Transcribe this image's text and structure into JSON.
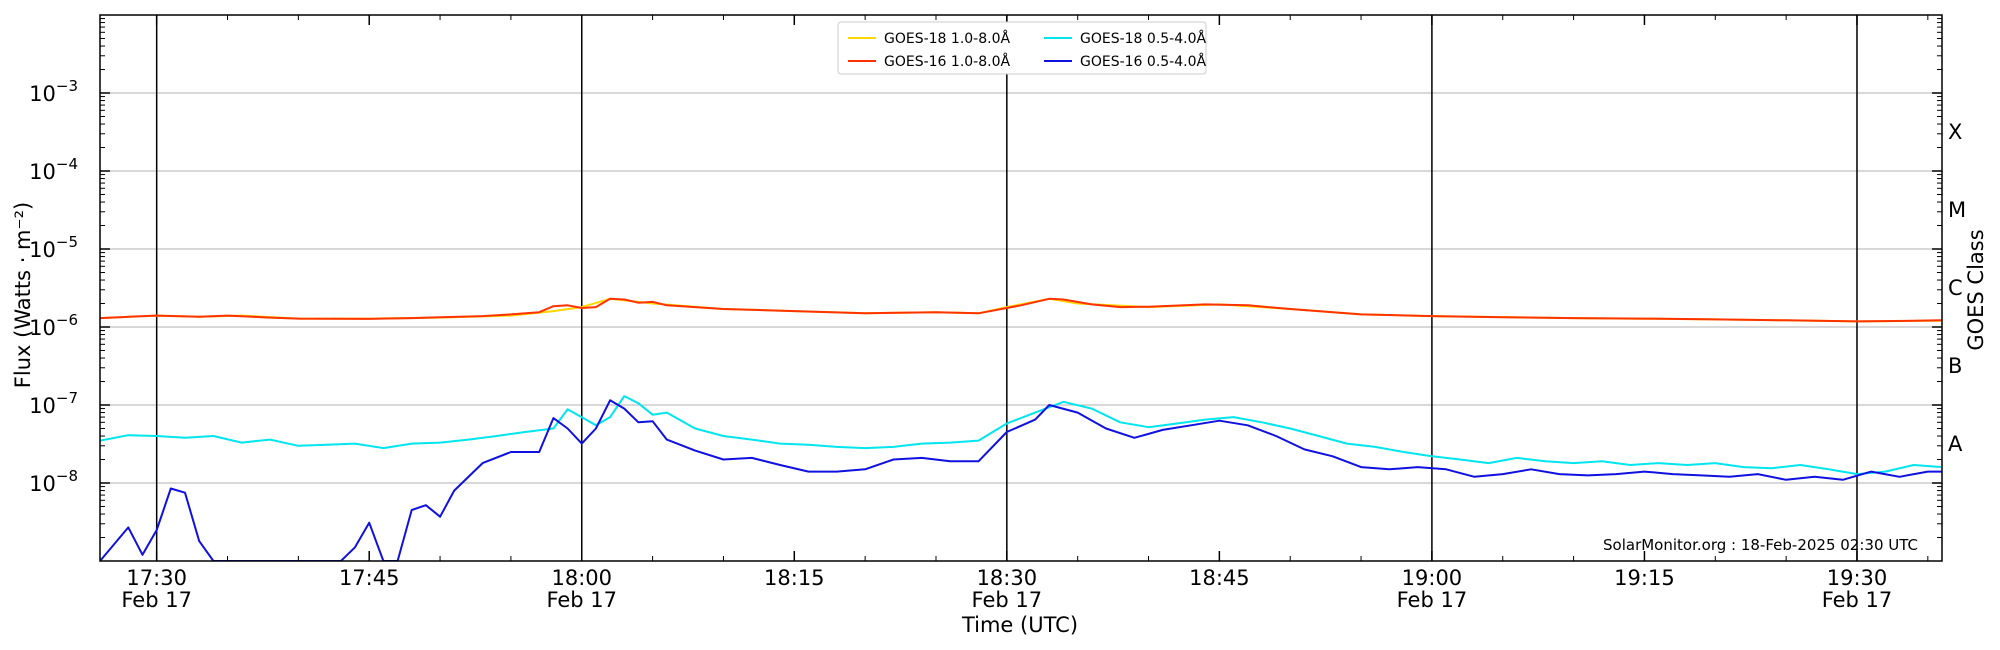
{
  "chart_data": {
    "type": "line",
    "title": "",
    "xlabel": "Time (UTC)",
    "ylabel": "Flux (Watts · m⁻²)",
    "y_scale": "log",
    "ylim": [
      1e-09,
      0.01
    ],
    "xlim": [
      "17:26",
      "19:36"
    ],
    "grid": "horizontal at decades",
    "legend_placement": "top-center",
    "credit": "SolarMonitor.org : 18-Feb-2025 02:30 UTC",
    "right_axis": {
      "label": "GOES Class",
      "classes": [
        {
          "name": "X",
          "flux": 0.0001
        },
        {
          "name": "M",
          "flux": 1e-05
        },
        {
          "name": "C",
          "flux": 1e-06
        },
        {
          "name": "B",
          "flux": 1e-07
        },
        {
          "name": "A",
          "flux": 1e-08
        }
      ]
    },
    "y_ticks": [
      {
        "value": 0.001,
        "base": "10",
        "exp": "−3"
      },
      {
        "value": 0.0001,
        "base": "10",
        "exp": "−4"
      },
      {
        "value": 1e-05,
        "base": "10",
        "exp": "−5"
      },
      {
        "value": 1e-06,
        "base": "10",
        "exp": "−6"
      },
      {
        "value": 1e-07,
        "base": "10",
        "exp": "−7"
      },
      {
        "value": 1e-08,
        "base": "10",
        "exp": "−8"
      }
    ],
    "x_ticks": [
      {
        "time": "17:30",
        "line1": "17:30",
        "line2": "Feb 17",
        "vline": true
      },
      {
        "time": "17:45",
        "line1": "17:45",
        "line2": "",
        "vline": false
      },
      {
        "time": "18:00",
        "line1": "18:00",
        "line2": "Feb 17",
        "vline": true
      },
      {
        "time": "18:15",
        "line1": "18:15",
        "line2": "",
        "vline": false
      },
      {
        "time": "18:30",
        "line1": "18:30",
        "line2": "Feb 17",
        "vline": true
      },
      {
        "time": "18:45",
        "line1": "18:45",
        "line2": "",
        "vline": false
      },
      {
        "time": "19:00",
        "line1": "19:00",
        "line2": "Feb 17",
        "vline": true
      },
      {
        "time": "19:15",
        "line1": "19:15",
        "line2": "",
        "vline": false
      },
      {
        "time": "19:30",
        "line1": "19:30",
        "line2": "Feb 17",
        "vline": true
      }
    ],
    "series": [
      {
        "name": "GOES-18 1.0-8.0Å",
        "color": "#ffd700",
        "points": [
          [
            "17:26",
            1.3e-06
          ],
          [
            "17:30",
            1.4e-06
          ],
          [
            "17:33",
            1.35e-06
          ],
          [
            "17:36",
            1.4e-06
          ],
          [
            "17:40",
            1.28e-06
          ],
          [
            "17:45",
            1.28e-06
          ],
          [
            "17:50",
            1.32e-06
          ],
          [
            "17:55",
            1.4e-06
          ],
          [
            "17:58",
            1.6e-06
          ],
          [
            "18:00",
            1.8e-06
          ],
          [
            "18:02",
            2.3e-06
          ],
          [
            "18:05",
            2e-06
          ],
          [
            "18:10",
            1.7e-06
          ],
          [
            "18:15",
            1.6e-06
          ],
          [
            "18:20",
            1.5e-06
          ],
          [
            "18:25",
            1.55e-06
          ],
          [
            "18:28",
            1.5e-06
          ],
          [
            "18:30",
            1.8e-06
          ],
          [
            "18:33",
            2.3e-06
          ],
          [
            "18:35",
            2e-06
          ],
          [
            "18:40",
            1.8e-06
          ],
          [
            "18:45",
            1.95e-06
          ],
          [
            "18:50",
            1.7e-06
          ],
          [
            "18:55",
            1.45e-06
          ],
          [
            "19:00",
            1.38e-06
          ],
          [
            "19:10",
            1.3e-06
          ],
          [
            "19:20",
            1.25e-06
          ],
          [
            "19:30",
            1.18e-06
          ],
          [
            "19:36",
            1.2e-06
          ]
        ]
      },
      {
        "name": "GOES-16 1.0-8.0Å",
        "color": "#ff3300",
        "points": [
          [
            "17:26",
            1.3e-06
          ],
          [
            "17:28",
            1.35e-06
          ],
          [
            "17:30",
            1.4e-06
          ],
          [
            "17:33",
            1.35e-06
          ],
          [
            "17:35",
            1.4e-06
          ],
          [
            "17:38",
            1.32e-06
          ],
          [
            "17:40",
            1.28e-06
          ],
          [
            "17:45",
            1.27e-06
          ],
          [
            "17:48",
            1.3e-06
          ],
          [
            "17:50",
            1.33e-06
          ],
          [
            "17:53",
            1.38e-06
          ],
          [
            "17:55",
            1.45e-06
          ],
          [
            "17:57",
            1.55e-06
          ],
          [
            "17:58",
            1.85e-06
          ],
          [
            "17:59",
            1.9e-06
          ],
          [
            "18:00",
            1.75e-06
          ],
          [
            "18:01",
            1.8e-06
          ],
          [
            "18:02",
            2.3e-06
          ],
          [
            "18:03",
            2.25e-06
          ],
          [
            "18:04",
            2.05e-06
          ],
          [
            "18:05",
            2.1e-06
          ],
          [
            "18:06",
            1.9e-06
          ],
          [
            "18:10",
            1.7e-06
          ],
          [
            "18:15",
            1.6e-06
          ],
          [
            "18:20",
            1.5e-06
          ],
          [
            "18:25",
            1.55e-06
          ],
          [
            "18:28",
            1.5e-06
          ],
          [
            "18:30",
            1.75e-06
          ],
          [
            "18:31",
            1.9e-06
          ],
          [
            "18:33",
            2.3e-06
          ],
          [
            "18:34",
            2.25e-06
          ],
          [
            "18:36",
            1.95e-06
          ],
          [
            "18:38",
            1.8e-06
          ],
          [
            "18:40",
            1.82e-06
          ],
          [
            "18:44",
            1.95e-06
          ],
          [
            "18:47",
            1.9e-06
          ],
          [
            "18:50",
            1.7e-06
          ],
          [
            "18:55",
            1.45e-06
          ],
          [
            "19:00",
            1.38e-06
          ],
          [
            "19:05",
            1.33e-06
          ],
          [
            "19:10",
            1.3e-06
          ],
          [
            "19:15",
            1.28e-06
          ],
          [
            "19:20",
            1.25e-06
          ],
          [
            "19:25",
            1.22e-06
          ],
          [
            "19:30",
            1.18e-06
          ],
          [
            "19:34",
            1.2e-06
          ],
          [
            "19:36",
            1.22e-06
          ]
        ]
      },
      {
        "name": "GOES-18 0.5-4.0Å",
        "color": "#00e5ee",
        "points": [
          [
            "17:26",
            3.5e-08
          ],
          [
            "17:28",
            4.1e-08
          ],
          [
            "17:30",
            4e-08
          ],
          [
            "17:32",
            3.8e-08
          ],
          [
            "17:34",
            4e-08
          ],
          [
            "17:36",
            3.3e-08
          ],
          [
            "17:38",
            3.6e-08
          ],
          [
            "17:40",
            3e-08
          ],
          [
            "17:42",
            3.1e-08
          ],
          [
            "17:44",
            3.2e-08
          ],
          [
            "17:46",
            2.8e-08
          ],
          [
            "17:48",
            3.2e-08
          ],
          [
            "17:50",
            3.3e-08
          ],
          [
            "17:52",
            3.6e-08
          ],
          [
            "17:54",
            4e-08
          ],
          [
            "17:56",
            4.5e-08
          ],
          [
            "17:58",
            5e-08
          ],
          [
            "17:59",
            8.8e-08
          ],
          [
            "18:01",
            5.5e-08
          ],
          [
            "18:02",
            7e-08
          ],
          [
            "18:03",
            1.3e-07
          ],
          [
            "18:04",
            1.05e-07
          ],
          [
            "18:05",
            7.5e-08
          ],
          [
            "18:06",
            8e-08
          ],
          [
            "18:08",
            5e-08
          ],
          [
            "18:10",
            4e-08
          ],
          [
            "18:12",
            3.6e-08
          ],
          [
            "18:14",
            3.2e-08
          ],
          [
            "18:16",
            3.1e-08
          ],
          [
            "18:18",
            2.9e-08
          ],
          [
            "18:20",
            2.8e-08
          ],
          [
            "18:22",
            2.9e-08
          ],
          [
            "18:24",
            3.2e-08
          ],
          [
            "18:26",
            3.3e-08
          ],
          [
            "18:28",
            3.5e-08
          ],
          [
            "18:30",
            5.8e-08
          ],
          [
            "18:32",
            8e-08
          ],
          [
            "18:34",
            1.1e-07
          ],
          [
            "18:36",
            9e-08
          ],
          [
            "18:38",
            6e-08
          ],
          [
            "18:40",
            5.2e-08
          ],
          [
            "18:42",
            5.8e-08
          ],
          [
            "18:44",
            6.5e-08
          ],
          [
            "18:46",
            7e-08
          ],
          [
            "18:48",
            6e-08
          ],
          [
            "18:50",
            5e-08
          ],
          [
            "18:52",
            4e-08
          ],
          [
            "18:54",
            3.2e-08
          ],
          [
            "18:56",
            2.9e-08
          ],
          [
            "18:58",
            2.5e-08
          ],
          [
            "19:00",
            2.2e-08
          ],
          [
            "19:02",
            2e-08
          ],
          [
            "19:04",
            1.8e-08
          ],
          [
            "19:06",
            2.1e-08
          ],
          [
            "19:08",
            1.9e-08
          ],
          [
            "19:10",
            1.8e-08
          ],
          [
            "19:12",
            1.9e-08
          ],
          [
            "19:14",
            1.7e-08
          ],
          [
            "19:16",
            1.8e-08
          ],
          [
            "19:18",
            1.7e-08
          ],
          [
            "19:20",
            1.8e-08
          ],
          [
            "19:22",
            1.6e-08
          ],
          [
            "19:24",
            1.55e-08
          ],
          [
            "19:26",
            1.7e-08
          ],
          [
            "19:28",
            1.5e-08
          ],
          [
            "19:30",
            1.3e-08
          ],
          [
            "19:32",
            1.4e-08
          ],
          [
            "19:34",
            1.7e-08
          ],
          [
            "19:36",
            1.6e-08
          ]
        ]
      },
      {
        "name": "GOES-16 0.5-4.0Å",
        "color": "#1010e0",
        "points": [
          [
            "17:26",
            1e-09
          ],
          [
            "17:28",
            2.7e-09
          ],
          [
            "17:29",
            1.2e-09
          ],
          [
            "17:30",
            2.5e-09
          ],
          [
            "17:31",
            8.5e-09
          ],
          [
            "17:32",
            7.5e-09
          ],
          [
            "17:33",
            1.8e-09
          ],
          [
            "17:34",
            1e-09
          ],
          [
            "17:40",
            1e-09
          ],
          [
            "17:43",
            1e-09
          ],
          [
            "17:44",
            1.5e-09
          ],
          [
            "17:45",
            3.1e-09
          ],
          [
            "17:46",
            1e-09
          ],
          [
            "17:47",
            1e-09
          ],
          [
            "17:48",
            4.5e-09
          ],
          [
            "17:49",
            5.2e-09
          ],
          [
            "17:50",
            3.7e-09
          ],
          [
            "17:51",
            8e-09
          ],
          [
            "17:53",
            1.8e-08
          ],
          [
            "17:55",
            2.5e-08
          ],
          [
            "17:57",
            2.5e-08
          ],
          [
            "17:58",
            6.8e-08
          ],
          [
            "17:59",
            5e-08
          ],
          [
            "18:00",
            3.2e-08
          ],
          [
            "18:01",
            5e-08
          ],
          [
            "18:02",
            1.15e-07
          ],
          [
            "18:03",
            9e-08
          ],
          [
            "18:04",
            6e-08
          ],
          [
            "18:05",
            6.2e-08
          ],
          [
            "18:06",
            3.6e-08
          ],
          [
            "18:08",
            2.6e-08
          ],
          [
            "18:10",
            2e-08
          ],
          [
            "18:12",
            2.1e-08
          ],
          [
            "18:14",
            1.7e-08
          ],
          [
            "18:16",
            1.4e-08
          ],
          [
            "18:18",
            1.4e-08
          ],
          [
            "18:20",
            1.5e-08
          ],
          [
            "18:22",
            2e-08
          ],
          [
            "18:24",
            2.1e-08
          ],
          [
            "18:26",
            1.9e-08
          ],
          [
            "18:28",
            1.9e-08
          ],
          [
            "18:30",
            4.5e-08
          ],
          [
            "18:32",
            6.5e-08
          ],
          [
            "18:33",
            1e-07
          ],
          [
            "18:35",
            8e-08
          ],
          [
            "18:37",
            5e-08
          ],
          [
            "18:39",
            3.8e-08
          ],
          [
            "18:41",
            4.8e-08
          ],
          [
            "18:43",
            5.5e-08
          ],
          [
            "18:45",
            6.3e-08
          ],
          [
            "18:47",
            5.5e-08
          ],
          [
            "18:49",
            4e-08
          ],
          [
            "18:51",
            2.7e-08
          ],
          [
            "18:53",
            2.2e-08
          ],
          [
            "18:55",
            1.6e-08
          ],
          [
            "18:57",
            1.5e-08
          ],
          [
            "18:59",
            1.6e-08
          ],
          [
            "19:01",
            1.5e-08
          ],
          [
            "19:03",
            1.2e-08
          ],
          [
            "19:05",
            1.3e-08
          ],
          [
            "19:07",
            1.5e-08
          ],
          [
            "19:09",
            1.3e-08
          ],
          [
            "19:11",
            1.25e-08
          ],
          [
            "19:13",
            1.3e-08
          ],
          [
            "19:15",
            1.4e-08
          ],
          [
            "19:17",
            1.3e-08
          ],
          [
            "19:19",
            1.25e-08
          ],
          [
            "19:21",
            1.2e-08
          ],
          [
            "19:23",
            1.3e-08
          ],
          [
            "19:25",
            1.1e-08
          ],
          [
            "19:27",
            1.2e-08
          ],
          [
            "19:29",
            1.1e-08
          ],
          [
            "19:31",
            1.4e-08
          ],
          [
            "19:33",
            1.2e-08
          ],
          [
            "19:35",
            1.4e-08
          ],
          [
            "19:36",
            1.4e-08
          ]
        ]
      }
    ]
  }
}
